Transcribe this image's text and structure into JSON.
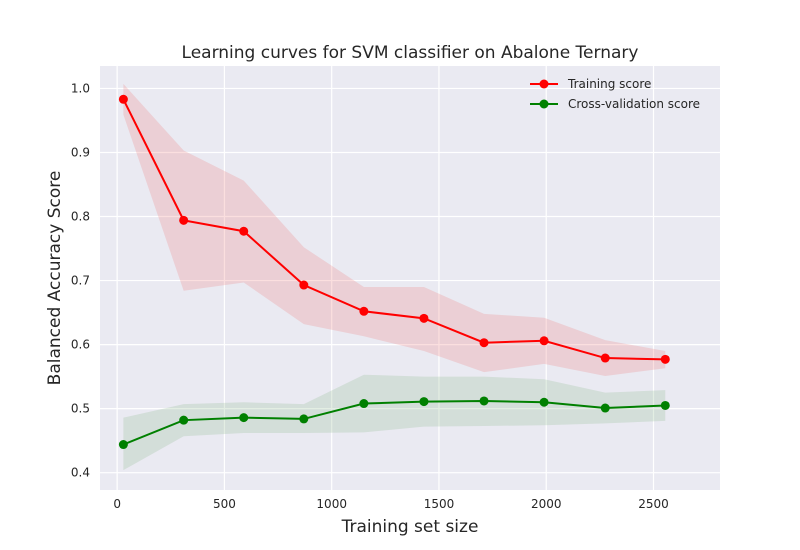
{
  "chart_data": {
    "type": "line",
    "title": "Learning curves for SVM classifier on Abalone Ternary",
    "xlabel": "Training set size",
    "ylabel": "Balanced Accuracy Score",
    "xlim": [
      -80,
      2810
    ],
    "ylim": [
      0.373,
      1.035
    ],
    "xticks": [
      0,
      500,
      1000,
      1500,
      2000,
      2500
    ],
    "yticks": [
      0.4,
      0.5,
      0.6,
      0.7,
      0.8,
      0.9,
      1.0
    ],
    "xtick_labels": [
      "0",
      "500",
      "1000",
      "1500",
      "2000",
      "2500"
    ],
    "ytick_labels": [
      "0.4",
      "0.5",
      "0.6",
      "0.7",
      "0.8",
      "0.9",
      "1.0"
    ],
    "grid": true,
    "legend_position": "top-right",
    "x": [
      29,
      310,
      590,
      870,
      1150,
      1430,
      1710,
      1990,
      2275,
      2555
    ],
    "series": [
      {
        "name": "Training score",
        "color": "#ff0000",
        "band_color": "#f08080",
        "values": [
          0.983,
          0.794,
          0.777,
          0.693,
          0.652,
          0.641,
          0.603,
          0.606,
          0.579,
          0.577
        ],
        "upper": [
          1.007,
          0.903,
          0.856,
          0.752,
          0.69,
          0.69,
          0.648,
          0.642,
          0.607,
          0.59
        ],
        "lower": [
          0.959,
          0.684,
          0.697,
          0.632,
          0.613,
          0.59,
          0.557,
          0.57,
          0.551,
          0.563
        ]
      },
      {
        "name": "Cross-validation score",
        "color": "#008000",
        "band_color": "#8fbc8f",
        "values": [
          0.444,
          0.482,
          0.486,
          0.484,
          0.508,
          0.511,
          0.512,
          0.51,
          0.501,
          0.505
        ],
        "upper": [
          0.486,
          0.507,
          0.51,
          0.507,
          0.553,
          0.55,
          0.55,
          0.546,
          0.525,
          0.529
        ],
        "lower": [
          0.404,
          0.457,
          0.462,
          0.462,
          0.463,
          0.472,
          0.473,
          0.474,
          0.477,
          0.481
        ]
      }
    ]
  }
}
